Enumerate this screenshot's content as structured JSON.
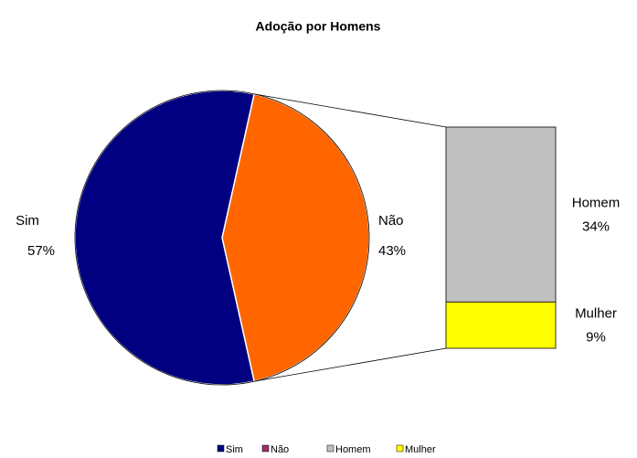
{
  "chart_data": {
    "type": "bar-of-pie",
    "title": "Adoção por Homens",
    "categories": [
      "Sim",
      "Não"
    ],
    "values": [
      57,
      43
    ],
    "value_labels": [
      "57%",
      "43%"
    ],
    "colors": [
      "#000080",
      "#ff6600"
    ],
    "secondary": {
      "categories": [
        "Homem",
        "Mulher"
      ],
      "values": [
        34,
        9
      ],
      "value_labels": [
        "34%",
        "9%"
      ],
      "colors": [
        "#c0c0c0",
        "#ffff00"
      ]
    },
    "legend_colors": [
      "#000080",
      "#993366",
      "#c0c0c0",
      "#ffff00"
    ]
  }
}
